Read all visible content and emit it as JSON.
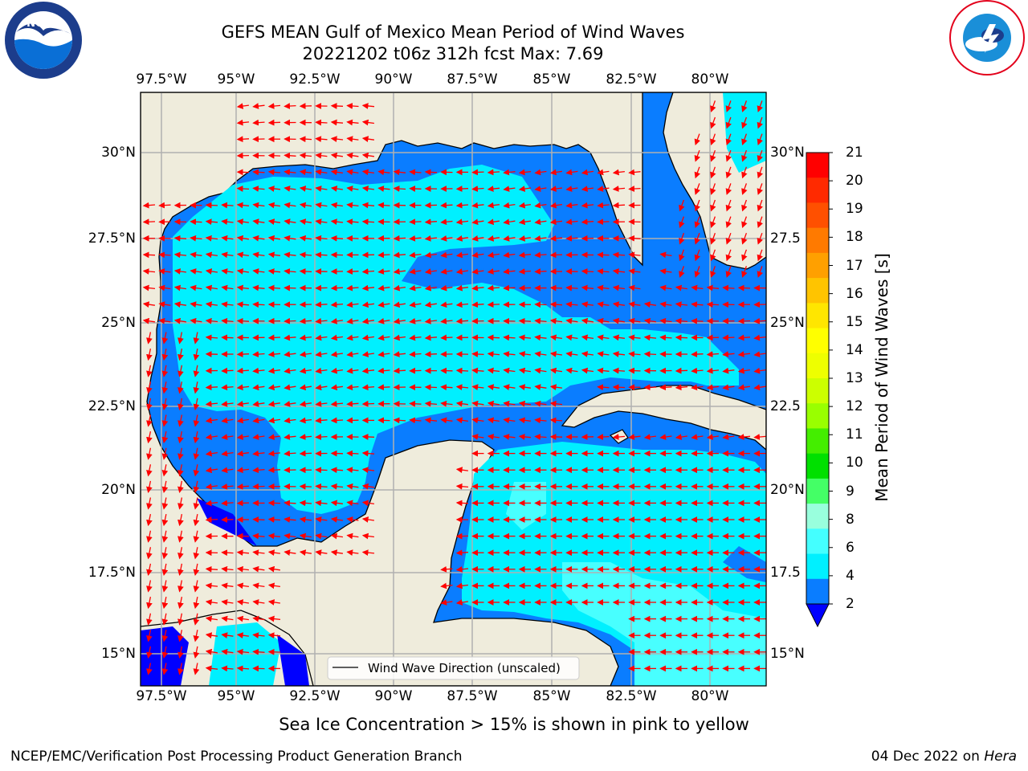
{
  "title": {
    "line1": "GEFS MEAN Gulf of Mexico Mean Period of Wind Waves",
    "line2": "20221202 t06z 312h fcst   Max: 7.69"
  },
  "map": {
    "lon_labels": [
      "97.5°W",
      "95°W",
      "92.5°W",
      "90°W",
      "87.5°W",
      "85°W",
      "82.5°W",
      "80°W"
    ],
    "lat_labels_left": [
      "30°N",
      "27.5°N",
      "25°N",
      "22.5°N",
      "20°N",
      "17.5°N",
      "15°N"
    ],
    "lat_labels_right": [
      "30°N",
      "27.5",
      "25°N",
      "22.5",
      "20°N",
      "17.5",
      "15°N"
    ],
    "legend_label": "Wind Wave Direction (unscaled)",
    "colors": {
      "land": "#efecdc",
      "band_2_4": "#0a7dff",
      "band_4_6": "#00f0ff",
      "band_6_8": "#48ffff",
      "below_2": "#0000ff",
      "arrow": "#ff0000",
      "grid": "#b0b0b0"
    }
  },
  "colorbar": {
    "title": "Mean Period of Wind Waves [s]",
    "labels": [
      "21",
      "20",
      "19",
      "18",
      "17",
      "16",
      "15",
      "14",
      "13",
      "12",
      "11",
      "10",
      "9",
      "8",
      "6",
      "4",
      "2"
    ],
    "colors": [
      "#ff0000",
      "#ff2a00",
      "#ff5000",
      "#ff7a00",
      "#ffa000",
      "#ffc400",
      "#ffe600",
      "#ffff00",
      "#eeff00",
      "#ccff00",
      "#99ff00",
      "#44ee00",
      "#00e000",
      "#44ff66",
      "#99ffdd",
      "#44ffff",
      "#00f0ff",
      "#0a7dff"
    ],
    "extend_color": "#0000ff"
  },
  "note": "Sea Ice Concentration > 15% is shown in pink to yellow",
  "footer": {
    "left": "NCEP/EMC/Verification Post Processing Product Generation Branch",
    "right_date": "04 Dec 2022 on ",
    "right_host": "Hera"
  },
  "logos": {
    "left": "NOAA",
    "right": "NATIONAL WEATHER SERVICE"
  }
}
